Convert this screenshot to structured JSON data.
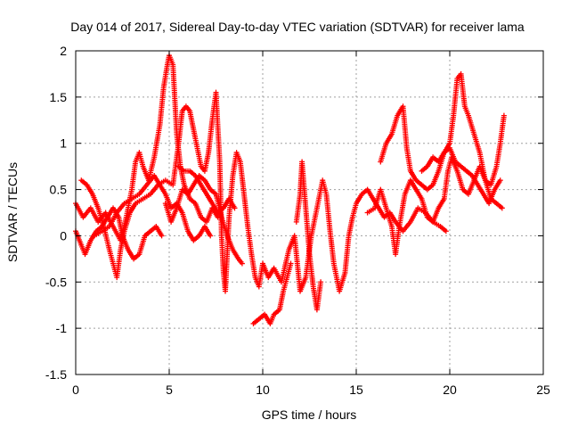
{
  "chart_data": {
    "type": "scatter",
    "title": "Day 014 of 2017, Sidereal Day-to-day VTEC variation (SDTVAR) for receiver lama",
    "xlabel": "GPS time / hours",
    "ylabel": "SDTVAR / TECUs",
    "xlim": [
      0,
      25
    ],
    "ylim": [
      -1.5,
      2
    ],
    "xticks": [
      0,
      5,
      10,
      15,
      20,
      25
    ],
    "xtick_labels": [
      "0",
      "5",
      "10",
      "15",
      "20",
      "25"
    ],
    "yticks": [
      -1.5,
      -1,
      -0.5,
      0,
      0.5,
      1,
      1.5,
      2
    ],
    "ytick_labels": [
      "-1.5",
      "-1",
      "-0.5",
      "0",
      "0.5",
      "1",
      "1.5",
      "2"
    ],
    "grid": true,
    "legend": "none",
    "marker": "plus",
    "series_color": "#ff0000",
    "series": [
      {
        "name": "track-1",
        "points": [
          [
            0.0,
            0.35
          ],
          [
            0.4,
            0.2
          ],
          [
            0.8,
            0.3
          ],
          [
            1.2,
            0.15
          ],
          [
            1.6,
            0.25
          ],
          [
            2.0,
            0.1
          ],
          [
            2.4,
            -0.05
          ],
          [
            2.7,
            0.2
          ],
          [
            3.0,
            0.5
          ],
          [
            3.2,
            0.8
          ],
          [
            3.4,
            0.9
          ],
          [
            3.6,
            0.75
          ],
          [
            3.9,
            0.6
          ],
          [
            4.2,
            0.85
          ],
          [
            4.5,
            1.2
          ],
          [
            4.7,
            1.6
          ],
          [
            4.9,
            1.85
          ],
          [
            5.0,
            1.95
          ],
          [
            5.2,
            1.85
          ],
          [
            5.4,
            1.1
          ],
          [
            5.6,
            0.75
          ],
          [
            5.8,
            0.55
          ],
          [
            6.1,
            0.4
          ],
          [
            6.4,
            0.35
          ],
          [
            6.7,
            0.2
          ],
          [
            7.0,
            0.15
          ],
          [
            7.3,
            0.3
          ],
          [
            7.6,
            0.2
          ]
        ]
      },
      {
        "name": "track-2",
        "points": [
          [
            0.3,
            0.6
          ],
          [
            0.6,
            0.55
          ],
          [
            0.9,
            0.45
          ],
          [
            1.2,
            0.3
          ],
          [
            1.5,
            0.1
          ],
          [
            1.8,
            -0.15
          ],
          [
            2.0,
            -0.3
          ],
          [
            2.2,
            -0.45
          ],
          [
            2.4,
            -0.15
          ],
          [
            2.6,
            0.05
          ],
          [
            2.9,
            0.25
          ],
          [
            3.2,
            0.35
          ],
          [
            3.6,
            0.4
          ],
          [
            4.0,
            0.45
          ],
          [
            4.4,
            0.55
          ],
          [
            4.8,
            0.6
          ],
          [
            5.2,
            0.55
          ],
          [
            5.5,
            1.0
          ],
          [
            5.7,
            1.35
          ],
          [
            5.9,
            1.4
          ],
          [
            6.1,
            1.35
          ],
          [
            6.3,
            1.15
          ],
          [
            6.4,
            1.05
          ],
          [
            6.7,
            0.75
          ],
          [
            6.9,
            0.7
          ],
          [
            7.1,
            0.9
          ],
          [
            7.3,
            1.25
          ],
          [
            7.5,
            1.55
          ],
          [
            7.7,
            0.8
          ],
          [
            7.8,
            0.0
          ],
          [
            7.9,
            -0.4
          ],
          [
            8.0,
            -0.6
          ],
          [
            8.2,
            0.2
          ],
          [
            8.4,
            0.65
          ],
          [
            8.6,
            0.9
          ],
          [
            8.8,
            0.8
          ],
          [
            9.0,
            0.45
          ],
          [
            9.2,
            0.1
          ],
          [
            9.4,
            -0.2
          ],
          [
            9.6,
            -0.45
          ],
          [
            9.8,
            -0.55
          ],
          [
            10.0,
            -0.3
          ],
          [
            10.3,
            -0.45
          ],
          [
            10.6,
            -0.35
          ],
          [
            11.0,
            -0.5
          ],
          [
            11.4,
            -0.15
          ],
          [
            11.7,
            0.0
          ],
          [
            12.0,
            -0.6
          ],
          [
            12.3,
            -0.45
          ],
          [
            12.6,
            0.0
          ],
          [
            12.9,
            0.3
          ],
          [
            13.2,
            0.6
          ],
          [
            13.4,
            0.45
          ],
          [
            13.6,
            0.05
          ],
          [
            13.8,
            -0.3
          ],
          [
            14.1,
            -0.6
          ],
          [
            14.4,
            -0.4
          ],
          [
            14.6,
            0.0
          ],
          [
            14.8,
            0.2
          ],
          [
            15.0,
            0.35
          ],
          [
            15.3,
            0.45
          ],
          [
            15.6,
            0.5
          ],
          [
            15.9,
            0.4
          ],
          [
            16.2,
            0.3
          ],
          [
            16.5,
            0.2
          ],
          [
            16.8,
            0.25
          ],
          [
            17.1,
            0.15
          ],
          [
            17.5,
            0.05
          ],
          [
            17.9,
            0.15
          ],
          [
            18.3,
            0.3
          ],
          [
            18.7,
            0.25
          ],
          [
            19.1,
            0.15
          ],
          [
            19.5,
            0.1
          ],
          [
            19.8,
            0.05
          ]
        ]
      },
      {
        "name": "track-3",
        "points": [
          [
            0.0,
            0.05
          ],
          [
            0.3,
            -0.1
          ],
          [
            0.5,
            -0.2
          ],
          [
            0.8,
            -0.05
          ],
          [
            1.1,
            0.05
          ],
          [
            1.4,
            0.1
          ],
          [
            1.7,
            0.2
          ],
          [
            2.0,
            0.3
          ],
          [
            2.3,
            0.2
          ],
          [
            2.5,
            0.0
          ],
          [
            2.8,
            -0.15
          ],
          [
            3.1,
            -0.25
          ],
          [
            3.4,
            -0.2
          ],
          [
            3.7,
            0.0
          ],
          [
            4.0,
            0.05
          ],
          [
            4.3,
            0.1
          ],
          [
            4.6,
            0.0
          ]
        ]
      },
      {
        "name": "track-4",
        "points": [
          [
            1.0,
            0.0
          ],
          [
            1.4,
            0.05
          ],
          [
            1.8,
            0.1
          ],
          [
            2.2,
            0.25
          ],
          [
            2.6,
            0.35
          ],
          [
            3.0,
            0.4
          ],
          [
            3.4,
            0.45
          ],
          [
            3.8,
            0.55
          ],
          [
            4.2,
            0.65
          ],
          [
            4.5,
            0.55
          ],
          [
            4.8,
            0.45
          ],
          [
            5.1,
            0.3
          ],
          [
            5.4,
            0.35
          ],
          [
            5.7,
            0.25
          ],
          [
            6.0,
            0.05
          ],
          [
            6.3,
            -0.05
          ],
          [
            6.6,
            0.0
          ],
          [
            6.9,
            0.1
          ],
          [
            7.2,
            0.0
          ]
        ]
      },
      {
        "name": "track-5",
        "points": [
          [
            4.8,
            0.35
          ],
          [
            5.1,
            0.15
          ],
          [
            5.4,
            0.3
          ],
          [
            5.7,
            0.5
          ],
          [
            6.0,
            0.45
          ],
          [
            6.3,
            0.55
          ],
          [
            6.6,
            0.65
          ],
          [
            6.9,
            0.6
          ],
          [
            7.2,
            0.5
          ],
          [
            7.5,
            0.45
          ],
          [
            7.8,
            0.2
          ],
          [
            8.1,
            0.0
          ],
          [
            8.4,
            -0.15
          ],
          [
            8.7,
            -0.25
          ],
          [
            8.9,
            -0.3
          ]
        ]
      },
      {
        "name": "track-6",
        "points": [
          [
            5.5,
            0.75
          ],
          [
            5.8,
            0.7
          ],
          [
            6.1,
            0.7
          ],
          [
            6.4,
            0.65
          ],
          [
            6.7,
            0.55
          ],
          [
            7.0,
            0.45
          ],
          [
            7.3,
            0.35
          ],
          [
            7.6,
            0.25
          ],
          [
            7.9,
            0.3
          ],
          [
            8.2,
            0.4
          ],
          [
            8.5,
            0.3
          ]
        ]
      },
      {
        "name": "track-7",
        "points": [
          [
            9.5,
            -0.95
          ],
          [
            9.8,
            -0.9
          ],
          [
            10.1,
            -0.85
          ],
          [
            10.4,
            -0.95
          ],
          [
            10.6,
            -0.85
          ],
          [
            10.9,
            -0.8
          ],
          [
            11.1,
            -0.6
          ],
          [
            11.3,
            -0.45
          ],
          [
            11.5,
            -0.3
          ]
        ]
      },
      {
        "name": "track-8",
        "points": [
          [
            11.8,
            0.15
          ],
          [
            12.0,
            0.45
          ],
          [
            12.1,
            0.8
          ],
          [
            12.3,
            0.3
          ],
          [
            12.5,
            -0.2
          ],
          [
            12.7,
            -0.55
          ],
          [
            12.9,
            -0.8
          ],
          [
            13.1,
            -0.5
          ]
        ]
      },
      {
        "name": "track-9",
        "points": [
          [
            15.6,
            0.25
          ],
          [
            16.0,
            0.3
          ],
          [
            16.3,
            0.5
          ],
          [
            16.6,
            0.3
          ],
          [
            16.9,
            0.1
          ],
          [
            17.1,
            -0.2
          ],
          [
            17.3,
            0.1
          ],
          [
            17.6,
            0.45
          ],
          [
            17.9,
            0.6
          ],
          [
            18.2,
            0.5
          ],
          [
            18.5,
            0.4
          ],
          [
            18.8,
            0.2
          ],
          [
            19.1,
            0.15
          ],
          [
            19.4,
            0.3
          ],
          [
            19.7,
            0.4
          ],
          [
            19.9,
            0.7
          ],
          [
            20.1,
            0.85
          ],
          [
            20.4,
            0.7
          ],
          [
            20.7,
            0.5
          ],
          [
            21.0,
            0.45
          ],
          [
            21.3,
            0.6
          ],
          [
            21.6,
            0.75
          ],
          [
            21.9,
            0.6
          ],
          [
            22.2,
            0.4
          ],
          [
            22.5,
            0.35
          ],
          [
            22.8,
            0.3
          ]
        ]
      },
      {
        "name": "track-10",
        "points": [
          [
            16.3,
            0.8
          ],
          [
            16.6,
            1.0
          ],
          [
            16.9,
            1.1
          ],
          [
            17.2,
            1.3
          ],
          [
            17.5,
            1.4
          ],
          [
            17.7,
            0.95
          ],
          [
            17.9,
            0.7
          ],
          [
            18.2,
            0.6
          ],
          [
            18.5,
            0.55
          ],
          [
            18.8,
            0.5
          ],
          [
            19.1,
            0.55
          ],
          [
            19.4,
            0.7
          ],
          [
            19.7,
            0.9
          ],
          [
            20.0,
            1.0
          ],
          [
            20.2,
            1.3
          ],
          [
            20.4,
            1.7
          ],
          [
            20.6,
            1.75
          ],
          [
            20.8,
            1.4
          ],
          [
            21.0,
            1.3
          ],
          [
            21.3,
            1.1
          ],
          [
            21.6,
            0.9
          ],
          [
            21.9,
            0.6
          ],
          [
            22.2,
            0.55
          ],
          [
            22.5,
            0.75
          ],
          [
            22.7,
            1.0
          ],
          [
            22.9,
            1.3
          ]
        ]
      },
      {
        "name": "track-11",
        "points": [
          [
            18.5,
            0.7
          ],
          [
            18.8,
            0.75
          ],
          [
            19.1,
            0.85
          ],
          [
            19.4,
            0.8
          ],
          [
            19.7,
            0.9
          ],
          [
            20.0,
            0.95
          ],
          [
            20.3,
            0.8
          ],
          [
            20.6,
            0.75
          ],
          [
            20.9,
            0.7
          ],
          [
            21.2,
            0.65
          ],
          [
            21.5,
            0.55
          ],
          [
            21.8,
            0.45
          ],
          [
            22.1,
            0.35
          ],
          [
            22.4,
            0.5
          ],
          [
            22.7,
            0.6
          ]
        ]
      }
    ]
  }
}
